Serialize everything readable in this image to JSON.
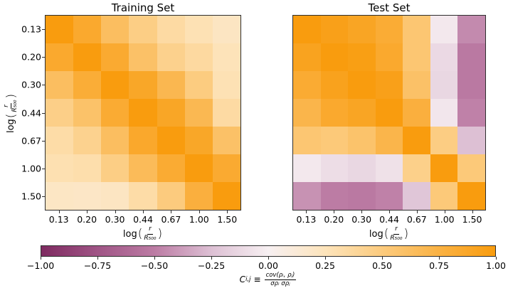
{
  "colormap": {
    "anchors": [
      {
        "value": -1.0,
        "color": "#7e2a60"
      },
      {
        "value": -0.75,
        "color": "#a05586"
      },
      {
        "value": -0.5,
        "color": "#bc7ca4"
      },
      {
        "value": -0.25,
        "color": "#ddc0d4"
      },
      {
        "value": 0.0,
        "color": "#f7f0f2"
      },
      {
        "value": 0.25,
        "color": "#fde4bb"
      },
      {
        "value": 0.5,
        "color": "#fccb7e"
      },
      {
        "value": 0.75,
        "color": "#fab244"
      },
      {
        "value": 1.0,
        "color": "#f99c0e"
      }
    ]
  },
  "axis_label": {
    "prefix": "log",
    "open_paren": "(",
    "numerator": "r",
    "denominator": "R₅₀₀",
    "close_paren": ")"
  },
  "colorbar": {
    "ticks": [
      "−1.00",
      "−0.75",
      "−0.50",
      "−0.25",
      "0.00",
      "0.25",
      "0.50",
      "0.75",
      "1.00"
    ],
    "label": {
      "symbol": "C",
      "subscript": "i,j",
      "equiv": "≡",
      "numerator": "cov(ρᵢ, ρⱼ)",
      "denominator": "σρᵢ σρⱼ"
    }
  },
  "chart_data": [
    {
      "type": "heatmap",
      "title": "Training Set",
      "xlabel": "log(r/R500)",
      "ylabel": "log(r/R500)",
      "x_categories": [
        "0.13",
        "0.20",
        "0.30",
        "0.44",
        "0.67",
        "1.00",
        "1.50"
      ],
      "y_categories": [
        "0.13",
        "0.20",
        "0.30",
        "0.44",
        "0.67",
        "1.00",
        "1.50"
      ],
      "vmin": -1,
      "vmax": 1,
      "values": [
        [
          1.0,
          0.85,
          0.63,
          0.47,
          0.35,
          0.28,
          0.22
        ],
        [
          0.85,
          1.0,
          0.84,
          0.6,
          0.44,
          0.36,
          0.26
        ],
        [
          0.63,
          0.81,
          1.0,
          0.88,
          0.7,
          0.49,
          0.28
        ],
        [
          0.46,
          0.59,
          0.83,
          1.0,
          0.89,
          0.69,
          0.35
        ],
        [
          0.33,
          0.43,
          0.63,
          0.86,
          1.0,
          0.88,
          0.6
        ],
        [
          0.29,
          0.31,
          0.47,
          0.66,
          0.83,
          1.0,
          0.84
        ],
        [
          0.21,
          0.2,
          0.22,
          0.33,
          0.5,
          0.78,
          1.0
        ]
      ]
    },
    {
      "type": "heatmap",
      "title": "Test Set",
      "xlabel": "log(r/R500)",
      "ylabel": "log(r/R500)",
      "x_categories": [
        "0.13",
        "0.20",
        "0.30",
        "0.44",
        "0.67",
        "1.00",
        "1.50"
      ],
      "y_categories": [
        "0.13",
        "0.20",
        "0.30",
        "0.44",
        "0.67",
        "1.00",
        "1.50"
      ],
      "vmin": -1,
      "vmax": 1,
      "values": [
        [
          1.0,
          0.95,
          0.9,
          0.82,
          0.55,
          -0.04,
          -0.45
        ],
        [
          0.92,
          1.0,
          0.97,
          0.85,
          0.55,
          -0.12,
          -0.52
        ],
        [
          0.83,
          0.93,
          1.0,
          0.95,
          0.6,
          -0.13,
          -0.52
        ],
        [
          0.72,
          0.85,
          0.9,
          1.0,
          0.78,
          -0.05,
          -0.48
        ],
        [
          0.55,
          0.52,
          0.58,
          0.72,
          1.0,
          0.48,
          -0.25
        ],
        [
          -0.04,
          -0.1,
          -0.13,
          -0.08,
          0.45,
          1.0,
          0.52
        ],
        [
          -0.42,
          -0.5,
          -0.52,
          -0.48,
          -0.22,
          0.52,
          1.0
        ]
      ]
    }
  ]
}
